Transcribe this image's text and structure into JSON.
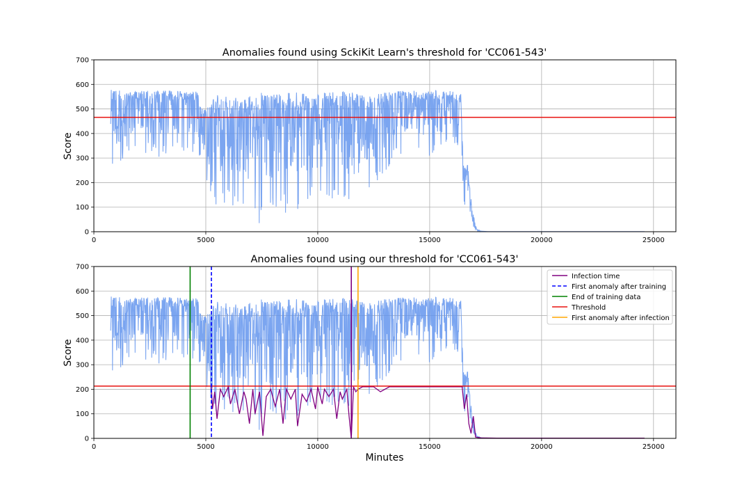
{
  "chart_data": [
    {
      "type": "line",
      "title": "Anomalies found using SckiKit Learn's threshold for 'CC061-543'",
      "xlabel": "",
      "ylabel": "Score",
      "xlim": [
        0,
        26000
      ],
      "ylim": [
        0,
        700
      ],
      "xticks": [
        "0",
        "5000",
        "10000",
        "15000",
        "20000",
        "25000"
      ],
      "yticks": [
        "0",
        "100",
        "200",
        "300",
        "400",
        "500",
        "600",
        "700"
      ],
      "grid": true,
      "score_color": "#6495ed",
      "score_envelope": [
        [
          750,
          210,
          580
        ],
        [
          1200,
          280,
          575
        ],
        [
          2000,
          330,
          575
        ],
        [
          3000,
          300,
          575
        ],
        [
          4000,
          330,
          575
        ],
        [
          4600,
          320,
          570
        ],
        [
          5000,
          180,
          500
        ],
        [
          5500,
          100,
          560
        ],
        [
          6000,
          110,
          550
        ],
        [
          6500,
          90,
          545
        ],
        [
          7000,
          15,
          560
        ],
        [
          7500,
          10,
          570
        ],
        [
          8000,
          40,
          570
        ],
        [
          8500,
          60,
          570
        ],
        [
          9000,
          70,
          570
        ],
        [
          9500,
          80,
          565
        ],
        [
          10000,
          120,
          560
        ],
        [
          10500,
          130,
          570
        ],
        [
          11000,
          90,
          575
        ],
        [
          11500,
          80,
          570
        ],
        [
          12000,
          110,
          560
        ],
        [
          12500,
          180,
          550
        ],
        [
          13000,
          240,
          575
        ],
        [
          13500,
          300,
          575
        ],
        [
          14000,
          330,
          575
        ],
        [
          14500,
          310,
          575
        ],
        [
          15000,
          300,
          575
        ],
        [
          15500,
          330,
          575
        ],
        [
          16000,
          350,
          575
        ],
        [
          16400,
          330,
          560
        ],
        [
          16500,
          120,
          275
        ],
        [
          16700,
          60,
          270
        ],
        [
          16900,
          2,
          90
        ],
        [
          17100,
          0,
          10
        ],
        [
          17300,
          0,
          3
        ]
      ],
      "threshold": {
        "label": "Threshold",
        "value": 466,
        "color": "#e8100e"
      }
    },
    {
      "type": "line",
      "title": "Anomalies found using our threshold for 'CC061-543'",
      "xlabel": "Minutes",
      "ylabel": "Score",
      "xlim": [
        0,
        26000
      ],
      "ylim": [
        0,
        700
      ],
      "xticks": [
        "0",
        "5000",
        "10000",
        "15000",
        "20000",
        "25000"
      ],
      "yticks": [
        "0",
        "100",
        "200",
        "300",
        "400",
        "500",
        "600",
        "700"
      ],
      "grid": true,
      "legend_position": "top-right",
      "score_color": "#6495ed",
      "score_envelope": [
        [
          750,
          210,
          580
        ],
        [
          1200,
          280,
          575
        ],
        [
          2000,
          330,
          575
        ],
        [
          3000,
          300,
          575
        ],
        [
          4000,
          330,
          575
        ],
        [
          4600,
          320,
          570
        ],
        [
          5000,
          180,
          500
        ],
        [
          5500,
          100,
          560
        ],
        [
          6000,
          110,
          550
        ],
        [
          6500,
          90,
          545
        ],
        [
          7000,
          15,
          560
        ],
        [
          7500,
          10,
          570
        ],
        [
          8000,
          40,
          570
        ],
        [
          8500,
          60,
          570
        ],
        [
          9000,
          70,
          570
        ],
        [
          9500,
          80,
          565
        ],
        [
          10000,
          120,
          560
        ],
        [
          10500,
          130,
          570
        ],
        [
          11000,
          90,
          575
        ],
        [
          11500,
          80,
          570
        ],
        [
          12000,
          110,
          560
        ],
        [
          12500,
          180,
          550
        ],
        [
          13000,
          240,
          575
        ],
        [
          13500,
          300,
          575
        ],
        [
          14000,
          330,
          575
        ],
        [
          14500,
          310,
          575
        ],
        [
          15000,
          300,
          575
        ],
        [
          15500,
          330,
          575
        ],
        [
          16000,
          350,
          575
        ],
        [
          16400,
          330,
          560
        ],
        [
          16500,
          120,
          275
        ],
        [
          16700,
          60,
          270
        ],
        [
          16900,
          2,
          90
        ],
        [
          17100,
          0,
          10
        ],
        [
          17300,
          0,
          3
        ]
      ],
      "anomaly_color": "#800080",
      "anomaly_points": [
        [
          5250,
          210
        ],
        [
          5300,
          120
        ],
        [
          5400,
          190
        ],
        [
          5500,
          80
        ],
        [
          5650,
          200
        ],
        [
          5800,
          170
        ],
        [
          6000,
          210
        ],
        [
          6100,
          140
        ],
        [
          6300,
          200
        ],
        [
          6500,
          100
        ],
        [
          6700,
          190
        ],
        [
          6800,
          160
        ],
        [
          6950,
          60
        ],
        [
          7100,
          200
        ],
        [
          7200,
          100
        ],
        [
          7400,
          190
        ],
        [
          7550,
          10
        ],
        [
          7700,
          170
        ],
        [
          7900,
          200
        ],
        [
          8100,
          130
        ],
        [
          8300,
          200
        ],
        [
          8450,
          60
        ],
        [
          8600,
          200
        ],
        [
          8800,
          160
        ],
        [
          9000,
          200
        ],
        [
          9100,
          50
        ],
        [
          9300,
          180
        ],
        [
          9500,
          150
        ],
        [
          9700,
          200
        ],
        [
          9900,
          120
        ],
        [
          10000,
          210
        ],
        [
          10200,
          140
        ],
        [
          10300,
          200
        ],
        [
          10500,
          170
        ],
        [
          10700,
          200
        ],
        [
          10850,
          80
        ],
        [
          11000,
          190
        ],
        [
          11100,
          160
        ],
        [
          11300,
          200
        ],
        [
          11400,
          90
        ],
        [
          11500,
          0
        ],
        [
          11600,
          210
        ],
        [
          11700,
          190
        ],
        [
          11800,
          200
        ],
        [
          12000,
          210
        ],
        [
          12500,
          210
        ],
        [
          12800,
          190
        ],
        [
          13200,
          210
        ],
        [
          14000,
          210
        ],
        [
          15000,
          210
        ],
        [
          16000,
          210
        ],
        [
          16450,
          210
        ],
        [
          16550,
          120
        ],
        [
          16650,
          180
        ],
        [
          16750,
          60
        ],
        [
          16850,
          20
        ],
        [
          16950,
          90
        ],
        [
          17050,
          5
        ],
        [
          17300,
          2
        ],
        [
          18000,
          1
        ],
        [
          20000,
          1
        ],
        [
          22000,
          1
        ],
        [
          24600,
          1
        ]
      ],
      "vlines": [
        {
          "label": "Infection time",
          "x": 11500,
          "color": "#800080",
          "style": "solid"
        },
        {
          "label": "First anomaly after training",
          "x": 5250,
          "color": "#0000ff",
          "style": "dashed"
        },
        {
          "label": "End of training data",
          "x": 4300,
          "color": "#008000",
          "style": "solid"
        },
        {
          "label": "First anomaly after infection",
          "x": 11800,
          "color": "#ffa500",
          "style": "solid"
        }
      ],
      "threshold": {
        "label": "Threshold",
        "value": 213,
        "color": "#e8100e"
      },
      "legend": [
        "Infection time",
        "First anomaly after training",
        "End of training data",
        "Threshold",
        "First anomaly after infection"
      ]
    }
  ]
}
